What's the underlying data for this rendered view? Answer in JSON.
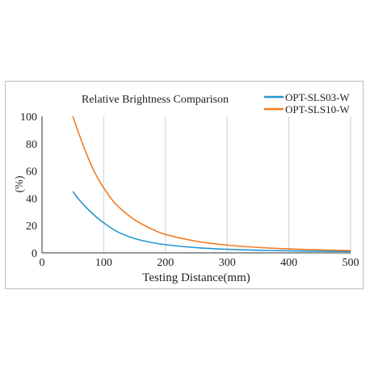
{
  "chart_data": {
    "type": "line",
    "title": "Relative Brightness Comparison",
    "xlabel": "Testing Distance(mm)",
    "ylabel": "(%)",
    "xlim": [
      0,
      500
    ],
    "ylim": [
      0,
      100
    ],
    "x_ticks": [
      0,
      100,
      200,
      300,
      400,
      500
    ],
    "y_ticks": [
      0,
      20,
      40,
      60,
      80,
      100
    ],
    "grid": "vertical",
    "legend_position": "top-right",
    "series": [
      {
        "name": "OPT-SLS03-W",
        "color": "#2596d2",
        "x": [
          50,
          60,
          70,
          80,
          90,
          100,
          120,
          140,
          160,
          180,
          200,
          250,
          300,
          350,
          400,
          450,
          500
        ],
        "y": [
          45,
          39,
          34,
          29.5,
          25.5,
          22,
          16,
          12,
          9.3,
          7.4,
          6,
          3.8,
          2.6,
          1.9,
          1.5,
          1.2,
          1
        ]
      },
      {
        "name": "OPT-SLS10-W",
        "color": "#f07b22",
        "x": [
          50,
          60,
          70,
          80,
          90,
          100,
          110,
          120,
          140,
          160,
          180,
          200,
          250,
          300,
          350,
          400,
          450,
          500
        ],
        "y": [
          100,
          87,
          75,
          64,
          55,
          47.5,
          41,
          35.5,
          27.5,
          21.5,
          17,
          13.5,
          8.5,
          5.7,
          4,
          2.9,
          2.2,
          1.7
        ]
      }
    ]
  }
}
